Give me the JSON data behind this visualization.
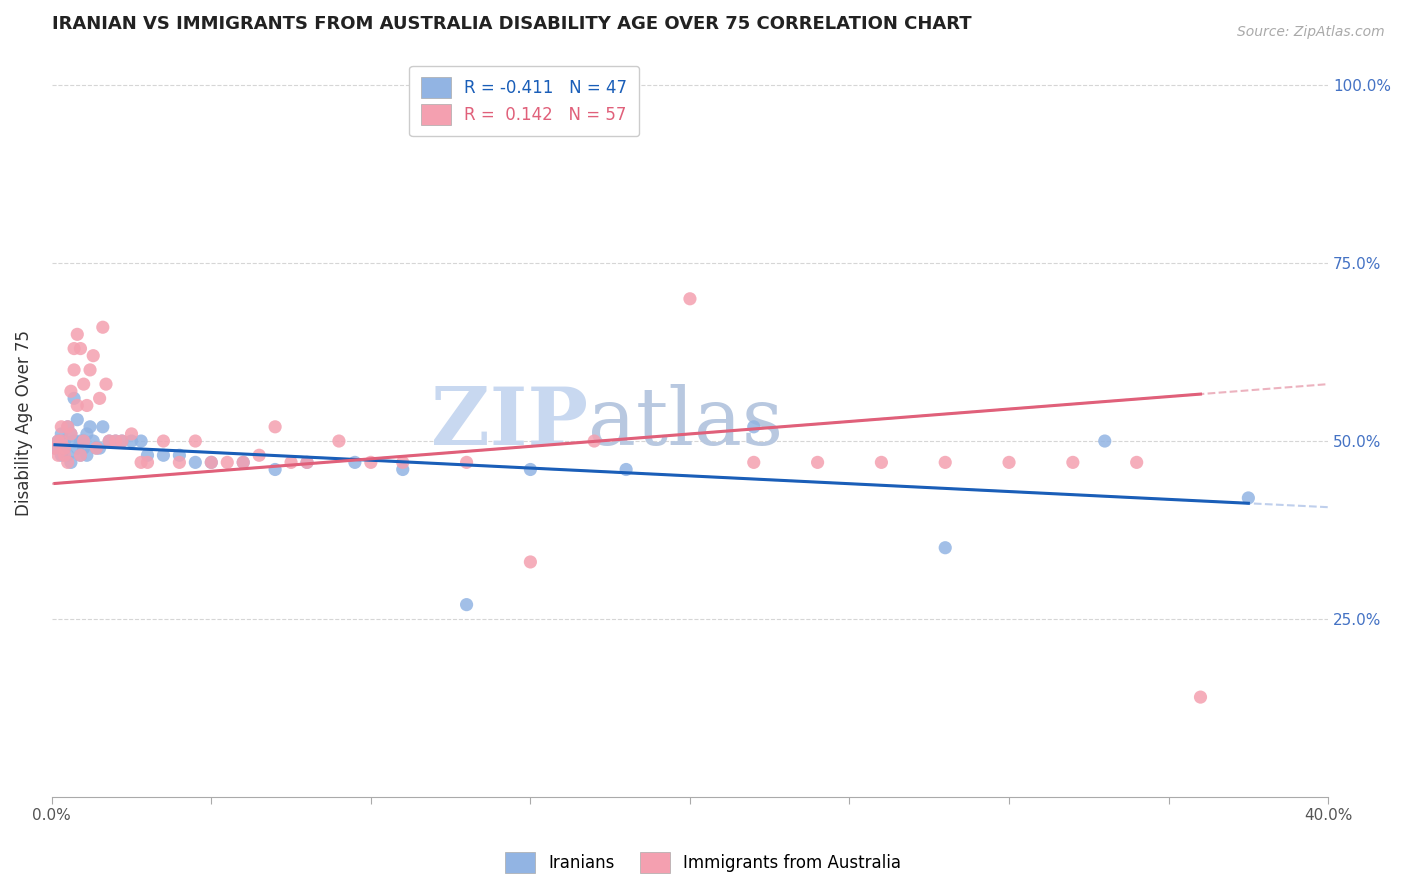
{
  "title": "IRANIAN VS IMMIGRANTS FROM AUSTRALIA DISABILITY AGE OVER 75 CORRELATION CHART",
  "source": "Source: ZipAtlas.com",
  "ylabel": "Disability Age Over 75",
  "legend_label_blue": "Iranians",
  "legend_label_pink": "Immigrants from Australia",
  "blue_color": "#92b4e3",
  "pink_color": "#f4a0b0",
  "trendline_blue_color": "#1a5eb8",
  "trendline_pink_color": "#e0607a",
  "trendline_blue_dash_color": "#b0c4e8",
  "trendline_pink_dash_color": "#e8a0b0",
  "watermark_color": "#c8d8f0",
  "background_color": "#ffffff",
  "x_min": 0.0,
  "x_max": 0.4,
  "y_min": 0.0,
  "y_max": 1.05,
  "blue_x": [
    0.001,
    0.002,
    0.003,
    0.003,
    0.004,
    0.004,
    0.005,
    0.005,
    0.006,
    0.006,
    0.007,
    0.007,
    0.008,
    0.008,
    0.009,
    0.009,
    0.01,
    0.01,
    0.011,
    0.011,
    0.012,
    0.013,
    0.014,
    0.015,
    0.016,
    0.018,
    0.02,
    0.022,
    0.025,
    0.028,
    0.03,
    0.035,
    0.04,
    0.045,
    0.05,
    0.06,
    0.07,
    0.08,
    0.095,
    0.11,
    0.13,
    0.15,
    0.18,
    0.22,
    0.28,
    0.33,
    0.375
  ],
  "blue_y": [
    0.49,
    0.5,
    0.48,
    0.51,
    0.5,
    0.49,
    0.52,
    0.48,
    0.51,
    0.47,
    0.56,
    0.5,
    0.49,
    0.53,
    0.48,
    0.5,
    0.49,
    0.5,
    0.48,
    0.51,
    0.52,
    0.5,
    0.49,
    0.49,
    0.52,
    0.5,
    0.5,
    0.5,
    0.5,
    0.5,
    0.48,
    0.48,
    0.48,
    0.47,
    0.47,
    0.47,
    0.46,
    0.47,
    0.47,
    0.46,
    0.27,
    0.46,
    0.46,
    0.52,
    0.35,
    0.5,
    0.42
  ],
  "pink_x": [
    0.001,
    0.002,
    0.002,
    0.003,
    0.003,
    0.004,
    0.004,
    0.005,
    0.005,
    0.006,
    0.006,
    0.007,
    0.007,
    0.008,
    0.008,
    0.009,
    0.009,
    0.01,
    0.01,
    0.011,
    0.012,
    0.013,
    0.014,
    0.015,
    0.016,
    0.017,
    0.018,
    0.02,
    0.022,
    0.025,
    0.028,
    0.03,
    0.035,
    0.04,
    0.045,
    0.05,
    0.055,
    0.06,
    0.065,
    0.07,
    0.075,
    0.08,
    0.09,
    0.1,
    0.11,
    0.13,
    0.15,
    0.17,
    0.2,
    0.22,
    0.24,
    0.26,
    0.28,
    0.3,
    0.32,
    0.34,
    0.36
  ],
  "pink_y": [
    0.49,
    0.5,
    0.48,
    0.5,
    0.52,
    0.48,
    0.49,
    0.52,
    0.47,
    0.51,
    0.57,
    0.6,
    0.63,
    0.55,
    0.65,
    0.63,
    0.48,
    0.58,
    0.5,
    0.55,
    0.6,
    0.62,
    0.49,
    0.56,
    0.66,
    0.58,
    0.5,
    0.5,
    0.5,
    0.51,
    0.47,
    0.47,
    0.5,
    0.47,
    0.5,
    0.47,
    0.47,
    0.47,
    0.48,
    0.52,
    0.47,
    0.47,
    0.5,
    0.47,
    0.47,
    0.47,
    0.33,
    0.5,
    0.7,
    0.47,
    0.47,
    0.47,
    0.47,
    0.47,
    0.47,
    0.47,
    0.14
  ]
}
